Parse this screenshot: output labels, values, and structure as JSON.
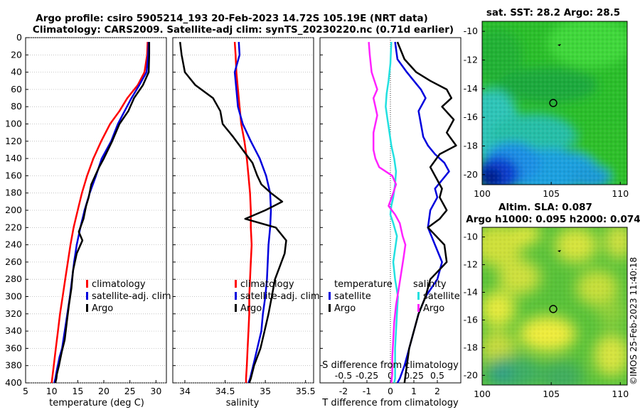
{
  "header": {
    "title_line1": "Argo profile: csiro 5905214_193 20-Feb-2023 14.72S 105.19E (NRT data)",
    "title_line2": "Climatology: CARS2009. Satellite-adj clim: synTS_20230220.nc (0.71d earlier)"
  },
  "colors": {
    "climatology": "#ff0000",
    "satellite": "#0000dd",
    "argo": "#000000",
    "temp_diff": "#22e0e0",
    "sal_diff": "#ff22ff"
  },
  "depth_axis": {
    "ticks": [
      "0",
      "20",
      "40",
      "60",
      "80",
      "100",
      "120",
      "140",
      "160",
      "180",
      "200",
      "220",
      "240",
      "260",
      "280",
      "300",
      "320",
      "340",
      "360",
      "380",
      "400"
    ],
    "range": [
      0,
      400
    ]
  },
  "chart_data": [
    {
      "type": "line",
      "name": "temperature-panel",
      "xlabel": "temperature (deg C)",
      "xlim": [
        5,
        32
      ],
      "xticks": [
        "5",
        "10",
        "15",
        "20",
        "25",
        "30"
      ],
      "ylim": [
        0,
        400
      ],
      "grid": true,
      "legend": [
        "climatology",
        "satellite-adj. clim",
        "Argo"
      ],
      "series": [
        {
          "name": "climatology",
          "color_key": "climatology",
          "x": [
            28.4,
            28.3,
            27.8,
            26.5,
            24.5,
            23.0,
            21.2,
            19.5,
            18.0,
            16.8,
            15.8,
            15.0,
            14.2,
            13.6,
            13.1,
            12.6,
            12.1,
            11.6,
            11.2,
            10.8,
            10.4,
            10.1,
            10.0
          ],
          "y": [
            5,
            20,
            40,
            55,
            70,
            85,
            100,
            120,
            140,
            160,
            180,
            200,
            220,
            240,
            260,
            280,
            300,
            320,
            340,
            360,
            380,
            395,
            400
          ]
        },
        {
          "name": "satellite-adj. clim",
          "color_key": "satellite",
          "x": [
            28.6,
            28.5,
            28.2,
            26.8,
            25.3,
            24.0,
            22.7,
            21.4,
            19.6,
            18.5,
            17.3,
            16.3,
            15.5,
            14.8,
            14.3,
            13.9,
            13.5,
            13.0,
            12.5,
            12.0,
            11.5,
            11.0,
            10.7,
            10.5
          ],
          "y": [
            5,
            20,
            40,
            55,
            70,
            85,
            100,
            120,
            140,
            160,
            180,
            200,
            220,
            240,
            260,
            280,
            300,
            320,
            340,
            360,
            370,
            385,
            395,
            400
          ]
        },
        {
          "name": "Argo",
          "color_key": "argo",
          "x": [
            28.7,
            28.7,
            28.6,
            27.5,
            25.8,
            24.7,
            23.0,
            21.6,
            20.0,
            19.1,
            17.6,
            17.1,
            16.6,
            16.1,
            15.5,
            15.2,
            15.9,
            14.8,
            14.1,
            13.8,
            13.3,
            12.9,
            12.5,
            11.9,
            11.4,
            11.0,
            10.9,
            10.7
          ],
          "y": [
            5,
            20,
            40,
            55,
            70,
            85,
            100,
            120,
            140,
            150,
            170,
            185,
            195,
            210,
            220,
            225,
            235,
            250,
            270,
            290,
            310,
            330,
            350,
            365,
            380,
            390,
            395,
            400
          ]
        }
      ]
    },
    {
      "type": "line",
      "name": "salinity-panel",
      "xlabel": "salinity",
      "xlim": [
        33.85,
        35.6
      ],
      "xticks": [
        "34",
        "34.5",
        "35",
        "35.5"
      ],
      "ylim": [
        0,
        400
      ],
      "grid": true,
      "legend": [
        "climatology",
        "satellite-adj. clim",
        "Argo"
      ],
      "series": [
        {
          "name": "climatology",
          "color_key": "climatology",
          "x": [
            34.62,
            34.63,
            34.64,
            34.66,
            34.68,
            34.7,
            34.74,
            34.77,
            34.79,
            34.81,
            34.82,
            34.82,
            34.83,
            34.82,
            34.81,
            34.8,
            34.8,
            34.79,
            34.78,
            34.77,
            34.76,
            34.76
          ],
          "y": [
            5,
            20,
            40,
            60,
            80,
            100,
            120,
            140,
            160,
            180,
            200,
            220,
            240,
            260,
            280,
            300,
            320,
            340,
            360,
            380,
            395,
            400
          ]
        },
        {
          "name": "satellite-adj. clim",
          "color_key": "satellite",
          "x": [
            34.67,
            34.68,
            34.62,
            34.64,
            34.66,
            34.72,
            34.82,
            34.93,
            35.01,
            35.06,
            35.07,
            35.06,
            35.04,
            35.03,
            35.02,
            35.0,
            34.97,
            34.95,
            34.9,
            34.85,
            34.81,
            34.79
          ],
          "y": [
            5,
            20,
            40,
            60,
            80,
            100,
            120,
            140,
            160,
            180,
            200,
            220,
            240,
            260,
            280,
            300,
            320,
            340,
            360,
            380,
            395,
            400
          ]
        },
        {
          "name": "Argo",
          "color_key": "argo",
          "x": [
            33.94,
            33.96,
            34.0,
            34.13,
            34.35,
            34.44,
            34.47,
            34.6,
            34.72,
            34.84,
            34.9,
            34.95,
            35.07,
            35.21,
            35.0,
            34.75,
            35.13,
            35.26,
            35.24,
            35.18,
            35.12,
            35.08,
            35.04,
            34.99,
            34.94,
            34.86,
            34.82,
            34.8
          ],
          "y": [
            5,
            20,
            40,
            55,
            70,
            85,
            100,
            115,
            130,
            145,
            160,
            170,
            180,
            190,
            200,
            210,
            220,
            235,
            250,
            265,
            280,
            300,
            320,
            340,
            360,
            380,
            395,
            400
          ]
        }
      ]
    },
    {
      "type": "line",
      "name": "difference-panel",
      "xlabel": "T difference from climatology",
      "xlim": [
        -3,
        3
      ],
      "xticks": [
        "-2",
        "-1",
        "0",
        "1",
        "2"
      ],
      "secondary_xlabel": "S difference from climatology",
      "secondary_xticks": [
        "-0.5",
        "-0.25",
        "0",
        "0.25",
        "0.5"
      ],
      "secondary_xlim": [
        -0.75,
        0.75
      ],
      "ylim": [
        0,
        400
      ],
      "zero_line": true,
      "legend": [
        "temperature",
        "satellite",
        "Argo",
        "salinity",
        "satellite",
        "Argo"
      ],
      "series": [
        {
          "name": "temperature satellite",
          "color_key": "satellite",
          "x": [
            0.2,
            0.3,
            0.7,
            1.0,
            1.3,
            1.5,
            1.2,
            1.3,
            1.4,
            1.6,
            1.9,
            2.3,
            2.5,
            2.2,
            1.9,
            2.0,
            1.7,
            1.6,
            1.9,
            2.2,
            2.0,
            1.5,
            1.2,
            1.0,
            0.8,
            0.6,
            0.4,
            0.3
          ],
          "y": [
            5,
            25,
            40,
            50,
            60,
            70,
            85,
            100,
            115,
            125,
            135,
            145,
            155,
            165,
            175,
            185,
            200,
            220,
            240,
            260,
            280,
            300,
            320,
            340,
            360,
            380,
            395,
            400
          ]
        },
        {
          "name": "temperature Argo",
          "color_key": "argo",
          "x": [
            0.3,
            0.6,
            1.1,
            1.7,
            2.4,
            2.6,
            2.2,
            2.7,
            2.4,
            2.8,
            2.1,
            1.7,
            2.0,
            2.2,
            2.1,
            2.4,
            2.1,
            1.6,
            2.3,
            2.4,
            1.7,
            1.5,
            1.2,
            1.0,
            0.8,
            0.7,
            0.6
          ],
          "y": [
            5,
            25,
            40,
            50,
            60,
            70,
            80,
            95,
            110,
            125,
            135,
            150,
            165,
            175,
            185,
            200,
            210,
            220,
            240,
            260,
            280,
            300,
            320,
            340,
            360,
            380,
            400
          ]
        },
        {
          "name": "salinity satellite",
          "color_key": "temp_diff",
          "x": [
            0.01,
            0.0,
            -0.02,
            -0.04,
            -0.05,
            -0.03,
            -0.01,
            0.01,
            0.04,
            0.06,
            0.05,
            0.03,
            0.01,
            0.0,
            0.03,
            0.07,
            0.05,
            0.03,
            0.05,
            0.08,
            0.07,
            0.06,
            0.05,
            0.05,
            0.05,
            0.04
          ],
          "y": [
            5,
            30,
            50,
            65,
            80,
            95,
            110,
            125,
            140,
            155,
            170,
            185,
            195,
            205,
            215,
            230,
            245,
            260,
            280,
            300,
            320,
            340,
            360,
            380,
            395,
            400
          ]
        },
        {
          "name": "salinity Argo",
          "color_key": "sal_diff",
          "x": [
            -0.23,
            -0.22,
            -0.2,
            -0.14,
            -0.18,
            -0.16,
            -0.14,
            -0.18,
            -0.18,
            -0.16,
            -0.12,
            0.02,
            0.06,
            0.03,
            -0.02,
            0.05,
            0.1,
            0.13,
            0.16,
            0.14,
            0.09,
            0.06,
            0.04,
            0.03,
            0.02,
            0.02,
            0.01
          ],
          "y": [
            5,
            20,
            40,
            60,
            70,
            80,
            90,
            110,
            130,
            140,
            150,
            160,
            170,
            180,
            195,
            205,
            215,
            230,
            240,
            255,
            290,
            310,
            330,
            350,
            370,
            390,
            400
          ]
        }
      ]
    },
    {
      "type": "heatmap",
      "name": "sst-map",
      "title": "sat. SST: 28.2 Argo: 28.5",
      "xticks": [
        "100",
        "105",
        "110"
      ],
      "yticks": [
        "-10",
        "-12",
        "-14",
        "-16",
        "-18",
        "-20"
      ],
      "xlim": [
        100,
        110.5
      ],
      "ylim": [
        -20.7,
        -9.3
      ],
      "argo_position": [
        105.19,
        -14.72
      ]
    },
    {
      "type": "heatmap",
      "name": "sla-map",
      "title_line1": "Altim. SLA: 0.087",
      "title_line2": "Argo h1000: 0.095 h2000: 0.074",
      "xticks": [
        "100",
        "105",
        "110"
      ],
      "yticks": [
        "-10",
        "-12",
        "-14",
        "-16",
        "-18",
        "-20"
      ],
      "xlim": [
        100,
        110.5
      ],
      "ylim": [
        -20.7,
        -9.3
      ],
      "argo_position": [
        105.19,
        -14.72
      ]
    }
  ],
  "footer": {
    "stamp": "©IMOS 25-Feb-2023 11:40:18"
  }
}
